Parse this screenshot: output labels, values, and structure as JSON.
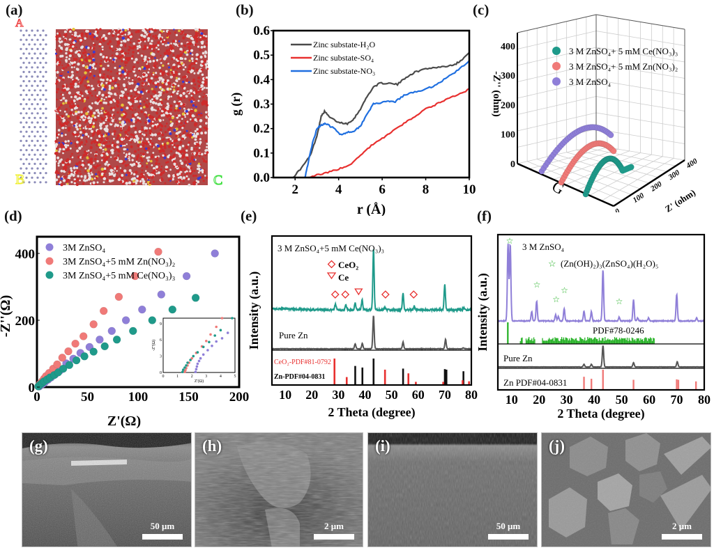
{
  "panels": {
    "a": {
      "label": "(a)",
      "axis_glyphs": {
        "a": "A",
        "b": "B",
        "c": "C"
      }
    },
    "b": {
      "label": "(b)"
    },
    "c": {
      "label": "(c)"
    },
    "d": {
      "label": "(d)"
    },
    "e": {
      "label": "(e)"
    },
    "f": {
      "label": "(f)"
    },
    "g": {
      "label": "(g)",
      "scale_bar": "50 μm"
    },
    "h": {
      "label": "(h)",
      "scale_bar": "2 μm"
    },
    "i": {
      "label": "(i)",
      "scale_bar": "50 μm"
    },
    "j": {
      "label": "(j)",
      "scale_bar": "2 μm"
    }
  },
  "colors": {
    "black": "#4a4a4a",
    "red": "#e8302f",
    "blue": "#1f6fe0",
    "purple": "#8f7fd8",
    "pink": "#f07a78",
    "teal": "#1f9a8a",
    "green": "#22b022",
    "gray": "#555555"
  },
  "chart_data": [
    {
      "id": "b",
      "type": "line",
      "title": "",
      "xlabel": "r (Å)",
      "ylabel": "g (r)",
      "xlim": [
        1,
        10
      ],
      "ylim": [
        0,
        0.6
      ],
      "xticks": [
        "2",
        "4",
        "6",
        "8",
        "10"
      ],
      "yticks": [
        "0.0",
        "0.1",
        "0.2",
        "0.3",
        "0.4",
        "0.5",
        "0.6"
      ],
      "legend_position": "top-left",
      "series": [
        {
          "name": "Zinc substate-H₂O",
          "color": "#4a4a4a",
          "x": [
            1.9,
            2.3,
            2.7,
            3.0,
            3.2,
            3.35,
            3.6,
            4.0,
            4.4,
            4.7,
            5.0,
            5.3,
            5.6,
            5.9,
            6.3,
            6.7,
            7.1,
            7.5,
            8.0,
            8.5,
            9.0,
            9.4,
            9.7,
            10.0
          ],
          "y": [
            0.0,
            0.04,
            0.09,
            0.17,
            0.25,
            0.27,
            0.245,
            0.225,
            0.22,
            0.24,
            0.28,
            0.33,
            0.37,
            0.385,
            0.385,
            0.38,
            0.41,
            0.43,
            0.445,
            0.45,
            0.455,
            0.465,
            0.485,
            0.51
          ]
        },
        {
          "name": "Zinc substate-SO₄",
          "color": "#e8302f",
          "x": [
            2.6,
            3.0,
            3.5,
            4.0,
            4.5,
            5.0,
            5.5,
            6.0,
            6.5,
            7.0,
            7.5,
            8.0,
            8.5,
            9.0,
            9.5,
            10.0
          ],
          "y": [
            0.0,
            0.01,
            0.02,
            0.035,
            0.05,
            0.09,
            0.13,
            0.16,
            0.19,
            0.22,
            0.25,
            0.28,
            0.3,
            0.32,
            0.34,
            0.36
          ]
        },
        {
          "name": "Zinc substate-NO₃",
          "color": "#1f6fe0",
          "x": [
            2.45,
            2.6,
            2.8,
            3.0,
            3.2,
            3.4,
            3.6,
            3.8,
            4.1,
            4.4,
            4.7,
            5.0,
            5.3,
            5.6,
            5.9,
            6.3,
            6.6,
            7.0,
            7.5,
            8.0,
            8.5,
            9.0,
            9.5,
            10.0
          ],
          "y": [
            0.0,
            0.06,
            0.14,
            0.2,
            0.215,
            0.22,
            0.21,
            0.2,
            0.175,
            0.185,
            0.19,
            0.21,
            0.26,
            0.3,
            0.305,
            0.31,
            0.31,
            0.335,
            0.35,
            0.36,
            0.38,
            0.41,
            0.44,
            0.475
          ]
        }
      ]
    },
    {
      "id": "c",
      "type": "scatter",
      "title": "",
      "xlabel": "Z' (ohm)",
      "ylabel": "-Z'' (ohm)",
      "zlabel": "",
      "floor_ticks": [
        "0",
        "100",
        "200",
        "300",
        "400"
      ],
      "vertical_ticks": [
        "0",
        "100",
        "200",
        "300",
        "400"
      ],
      "legend_position": "top-right",
      "series": [
        {
          "name": "3 M ZnSO₄+ 5 mM Ce(NO₃)₃",
          "color": "#1f9a8a"
        },
        {
          "name": "3 M ZnSO₄+ 5 mM Zn(NO₃)₂",
          "color": "#f07a78"
        },
        {
          "name": "3 M ZnSO₄",
          "color": "#8f7fd8"
        }
      ]
    },
    {
      "id": "d",
      "type": "scatter",
      "title": "",
      "xlabel": "Z'(Ω)",
      "ylabel": "-Z''(Ω)",
      "xlim": [
        0,
        200
      ],
      "ylim": [
        0,
        450
      ],
      "xticks": [
        "0",
        "50",
        "100",
        "150",
        "200"
      ],
      "yticks": [
        "0",
        "200",
        "400"
      ],
      "legend_position": "top-left",
      "series": [
        {
          "name": "3M ZnSO₄",
          "color": "#8f7fd8",
          "x": [
            2.3,
            4,
            6,
            8,
            11,
            14,
            18,
            23,
            29,
            36,
            43,
            52,
            62,
            74,
            88,
            104,
            123,
            148,
            176
          ],
          "y": [
            2,
            6,
            10,
            15,
            22,
            29,
            38,
            50,
            71,
            85,
            102,
            120,
            142,
            168,
            200,
            232,
            277,
            332,
            400
          ]
        },
        {
          "name": "3M ZnSO₄+5 mM Zn(NO₃)₂",
          "color": "#f07a78",
          "x": [
            1.5,
            3,
            5,
            7,
            9,
            12,
            16,
            20,
            25,
            31,
            38,
            46,
            56,
            66,
            81,
            97,
            120
          ],
          "y": [
            3,
            10,
            17,
            25,
            33,
            42,
            55,
            68,
            88,
            107,
            130,
            152,
            188,
            228,
            270,
            332,
            405
          ]
        },
        {
          "name": "3M ZnSO₄+5 mM Ce(NO₃)₃",
          "color": "#1f9a8a",
          "x": [
            1.4,
            3,
            5,
            7,
            10,
            13,
            17,
            21,
            26,
            32,
            39,
            47,
            56,
            67,
            79,
            95,
            114,
            134,
            157
          ],
          "y": [
            2,
            7,
            12,
            17,
            23,
            29,
            36,
            44,
            55,
            66,
            80,
            92,
            106,
            122,
            142,
            168,
            200,
            232,
            267
          ]
        }
      ],
      "inset": {
        "xlabel": "Z'(Ω)",
        "ylabel": "-Z''(Ω)",
        "xlim": [
          0,
          5
        ],
        "ylim": [
          0,
          10
        ],
        "xticks": [
          "0",
          "1",
          "2",
          "3",
          "4",
          "5"
        ],
        "yticks": [
          "0",
          "3",
          "6",
          "9"
        ],
        "series": [
          {
            "name": "3M ZnSO₄",
            "color": "#8f7fd8",
            "x": [
              2.25,
              2.3,
              2.35,
              2.4,
              2.5,
              2.6,
              2.8,
              3.1,
              3.4,
              3.7,
              4.1,
              4.5
            ],
            "y": [
              0.1,
              0.6,
              1.1,
              1.6,
              2.1,
              2.6,
              3.3,
              4.1,
              4.9,
              5.7,
              6.3,
              7.3
            ]
          },
          {
            "name": "3M ZnSO₄+5 mM Zn(NO₃)₂",
            "color": "#f07a78",
            "x": [
              1.5,
              1.55,
              1.6,
              1.7,
              1.8,
              2.0,
              2.3,
              2.7,
              3.0,
              3.3,
              3.7,
              4.1
            ],
            "y": [
              0.1,
              0.4,
              0.8,
              1.3,
              1.8,
              2.6,
              3.6,
              4.8,
              5.8,
              7.0,
              8.4,
              10.0
            ]
          },
          {
            "name": "3M ZnSO₄+5 mM Ce(NO₃)₃",
            "color": "#1f9a8a",
            "x": [
              1.35,
              1.4,
              1.5,
              1.6,
              1.7,
              1.9,
              2.1,
              2.4,
              2.8,
              3.2,
              3.6,
              4.0,
              4.8
            ],
            "y": [
              0.1,
              0.5,
              0.9,
              1.3,
              1.8,
              2.3,
              3.0,
              3.7,
              4.7,
              5.6,
              6.8,
              7.8,
              10.0
            ]
          }
        ]
      }
    },
    {
      "id": "e",
      "type": "line",
      "title": "",
      "xlabel": "2 Theta (degree)",
      "ylabel": "Intensity (a.u.)",
      "xlim": [
        5,
        80
      ],
      "xticks": [
        "10",
        "20",
        "30",
        "40",
        "50",
        "60",
        "70",
        "80"
      ],
      "annotations": {
        "sample_label": "3 M ZnSO₄+5 mM Ce(NO₃)₃",
        "legend_ceo2": "CeO₂",
        "legend_ce": "Ce",
        "pure_label": "Pure Zn",
        "ref_ceo2": "CeO₂-PDF#81-0792",
        "ref_zn": "Zn-PDF#04-0831"
      },
      "ceo2_markers_2theta": [
        28.8,
        32.6,
        47.7,
        58.3
      ],
      "ce_markers_2theta": [
        37.6
      ],
      "series": [
        {
          "name": "3 M ZnSO₄+5 mM Ce(NO₃)₃",
          "color": "#1f9a8a",
          "peaks": [
            [
              28.9,
              0.1
            ],
            [
              32.8,
              0.08
            ],
            [
              36.3,
              0.12
            ],
            [
              38.9,
              0.16
            ],
            [
              43.2,
              1.0
            ],
            [
              47.6,
              0.04
            ],
            [
              54.3,
              0.28
            ],
            [
              58.5,
              0.06
            ],
            [
              70.0,
              0.42
            ],
            [
              77.2,
              0.04
            ]
          ]
        },
        {
          "name": "Pure Zn",
          "color": "#555555",
          "peaks": [
            [
              36.3,
              0.15
            ],
            [
              39.0,
              0.16
            ],
            [
              43.2,
              1.0
            ],
            [
              54.3,
              0.2
            ],
            [
              70.3,
              0.28
            ],
            [
              77.0,
              0.03
            ]
          ]
        }
      ],
      "reference_sticks": {
        "CeO2": {
          "color": "#e8302f",
          "two_theta": [
            28.5,
            33.1,
            47.5,
            56.3,
            59.1,
            69.4,
            76.7,
            79.1
          ],
          "intensity": [
            1.0,
            0.3,
            0.58,
            0.44,
            0.12,
            0.12,
            0.18,
            0.14
          ]
        },
        "Zn": {
          "color": "#111111",
          "two_theta": [
            36.3,
            39.0,
            43.2,
            54.3,
            70.0,
            70.6,
            77.0
          ],
          "intensity": [
            0.72,
            0.66,
            1.0,
            0.62,
            0.6,
            0.58,
            0.52
          ]
        }
      }
    },
    {
      "id": "f",
      "type": "line",
      "title": "",
      "xlabel": "2 Theta (degree)",
      "ylabel": "Intensity (a.u.)",
      "xlim": [
        5,
        80
      ],
      "xticks": [
        "10",
        "20",
        "30",
        "40",
        "50",
        "60",
        "70",
        "80"
      ],
      "annotations": {
        "sample_label": "3 M ZnSO₄",
        "legend_phase": "(Zn(OH)₂)₃(ZnSO₄)(H₂O)₅",
        "ref_phase": "PDF#78-0246",
        "pure_label": "Pure Zn",
        "ref_zn": "Zn PDF#04-0831"
      },
      "star_markers_2theta": [
        9.3,
        19.2,
        26.2,
        29.2,
        49.1
      ],
      "series": [
        {
          "name": "3 M ZnSO₄",
          "color": "#8f7fd8",
          "peaks": [
            [
              8.7,
              1.0
            ],
            [
              9.5,
              1.0
            ],
            [
              17.3,
              0.12
            ],
            [
              19.1,
              0.26
            ],
            [
              26.0,
              0.08
            ],
            [
              27.0,
              0.06
            ],
            [
              29.1,
              0.16
            ],
            [
              36.3,
              0.13
            ],
            [
              39.0,
              0.12
            ],
            [
              43.2,
              0.67
            ],
            [
              49.1,
              0.05
            ],
            [
              54.3,
              0.28
            ],
            [
              55.8,
              0.04
            ],
            [
              59.8,
              0.04
            ],
            [
              70.0,
              0.35
            ],
            [
              77.2,
              0.04
            ]
          ]
        },
        {
          "name": "Pure Zn",
          "color": "#555555",
          "peaks": [
            [
              36.3,
              0.12
            ],
            [
              39.0,
              0.12
            ],
            [
              43.2,
              1.0
            ],
            [
              54.3,
              0.2
            ],
            [
              70.2,
              0.24
            ]
          ]
        }
      ],
      "reference_sticks": {
        "PDF#78-0246": {
          "color": "#22b022",
          "two_theta_major": [
            8.6
          ],
          "dense_range": [
            13,
            62
          ]
        },
        "Zn": {
          "color": "#f07a78",
          "two_theta": [
            36.3,
            39.0,
            43.2,
            54.3,
            70.0,
            70.6,
            77.0
          ],
          "intensity": [
            0.65,
            0.55,
            1.0,
            0.5,
            0.52,
            0.5,
            0.42
          ]
        }
      }
    }
  ]
}
